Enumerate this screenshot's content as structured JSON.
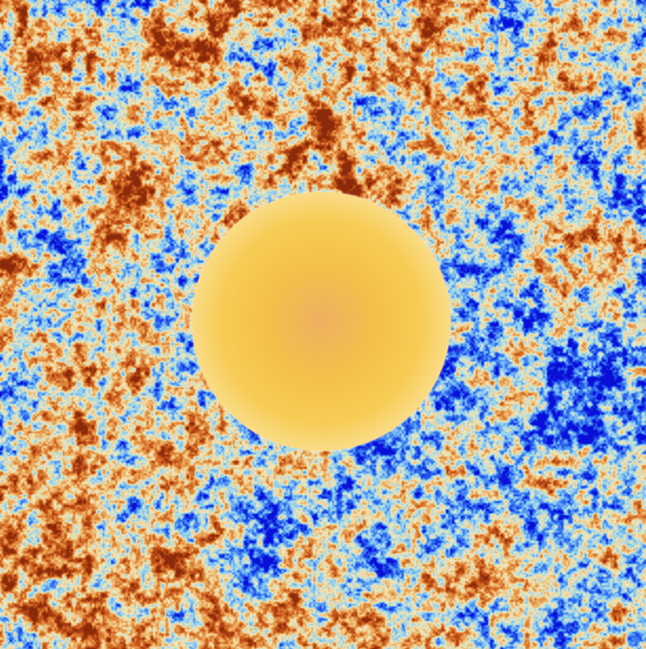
{
  "image": {
    "subject": "temperature-fluctuation-sky-map",
    "colormap": [
      "#0a0fd8",
      "#2f6ff0",
      "#8fd0f2",
      "#f3e7b6",
      "#e9a04f",
      "#c8551a",
      "#8a2a0a"
    ],
    "disc_gradient": [
      "#efb060",
      "#f4c04a",
      "#f7cc55",
      "#fcebb6",
      "#fffdf4"
    ]
  }
}
